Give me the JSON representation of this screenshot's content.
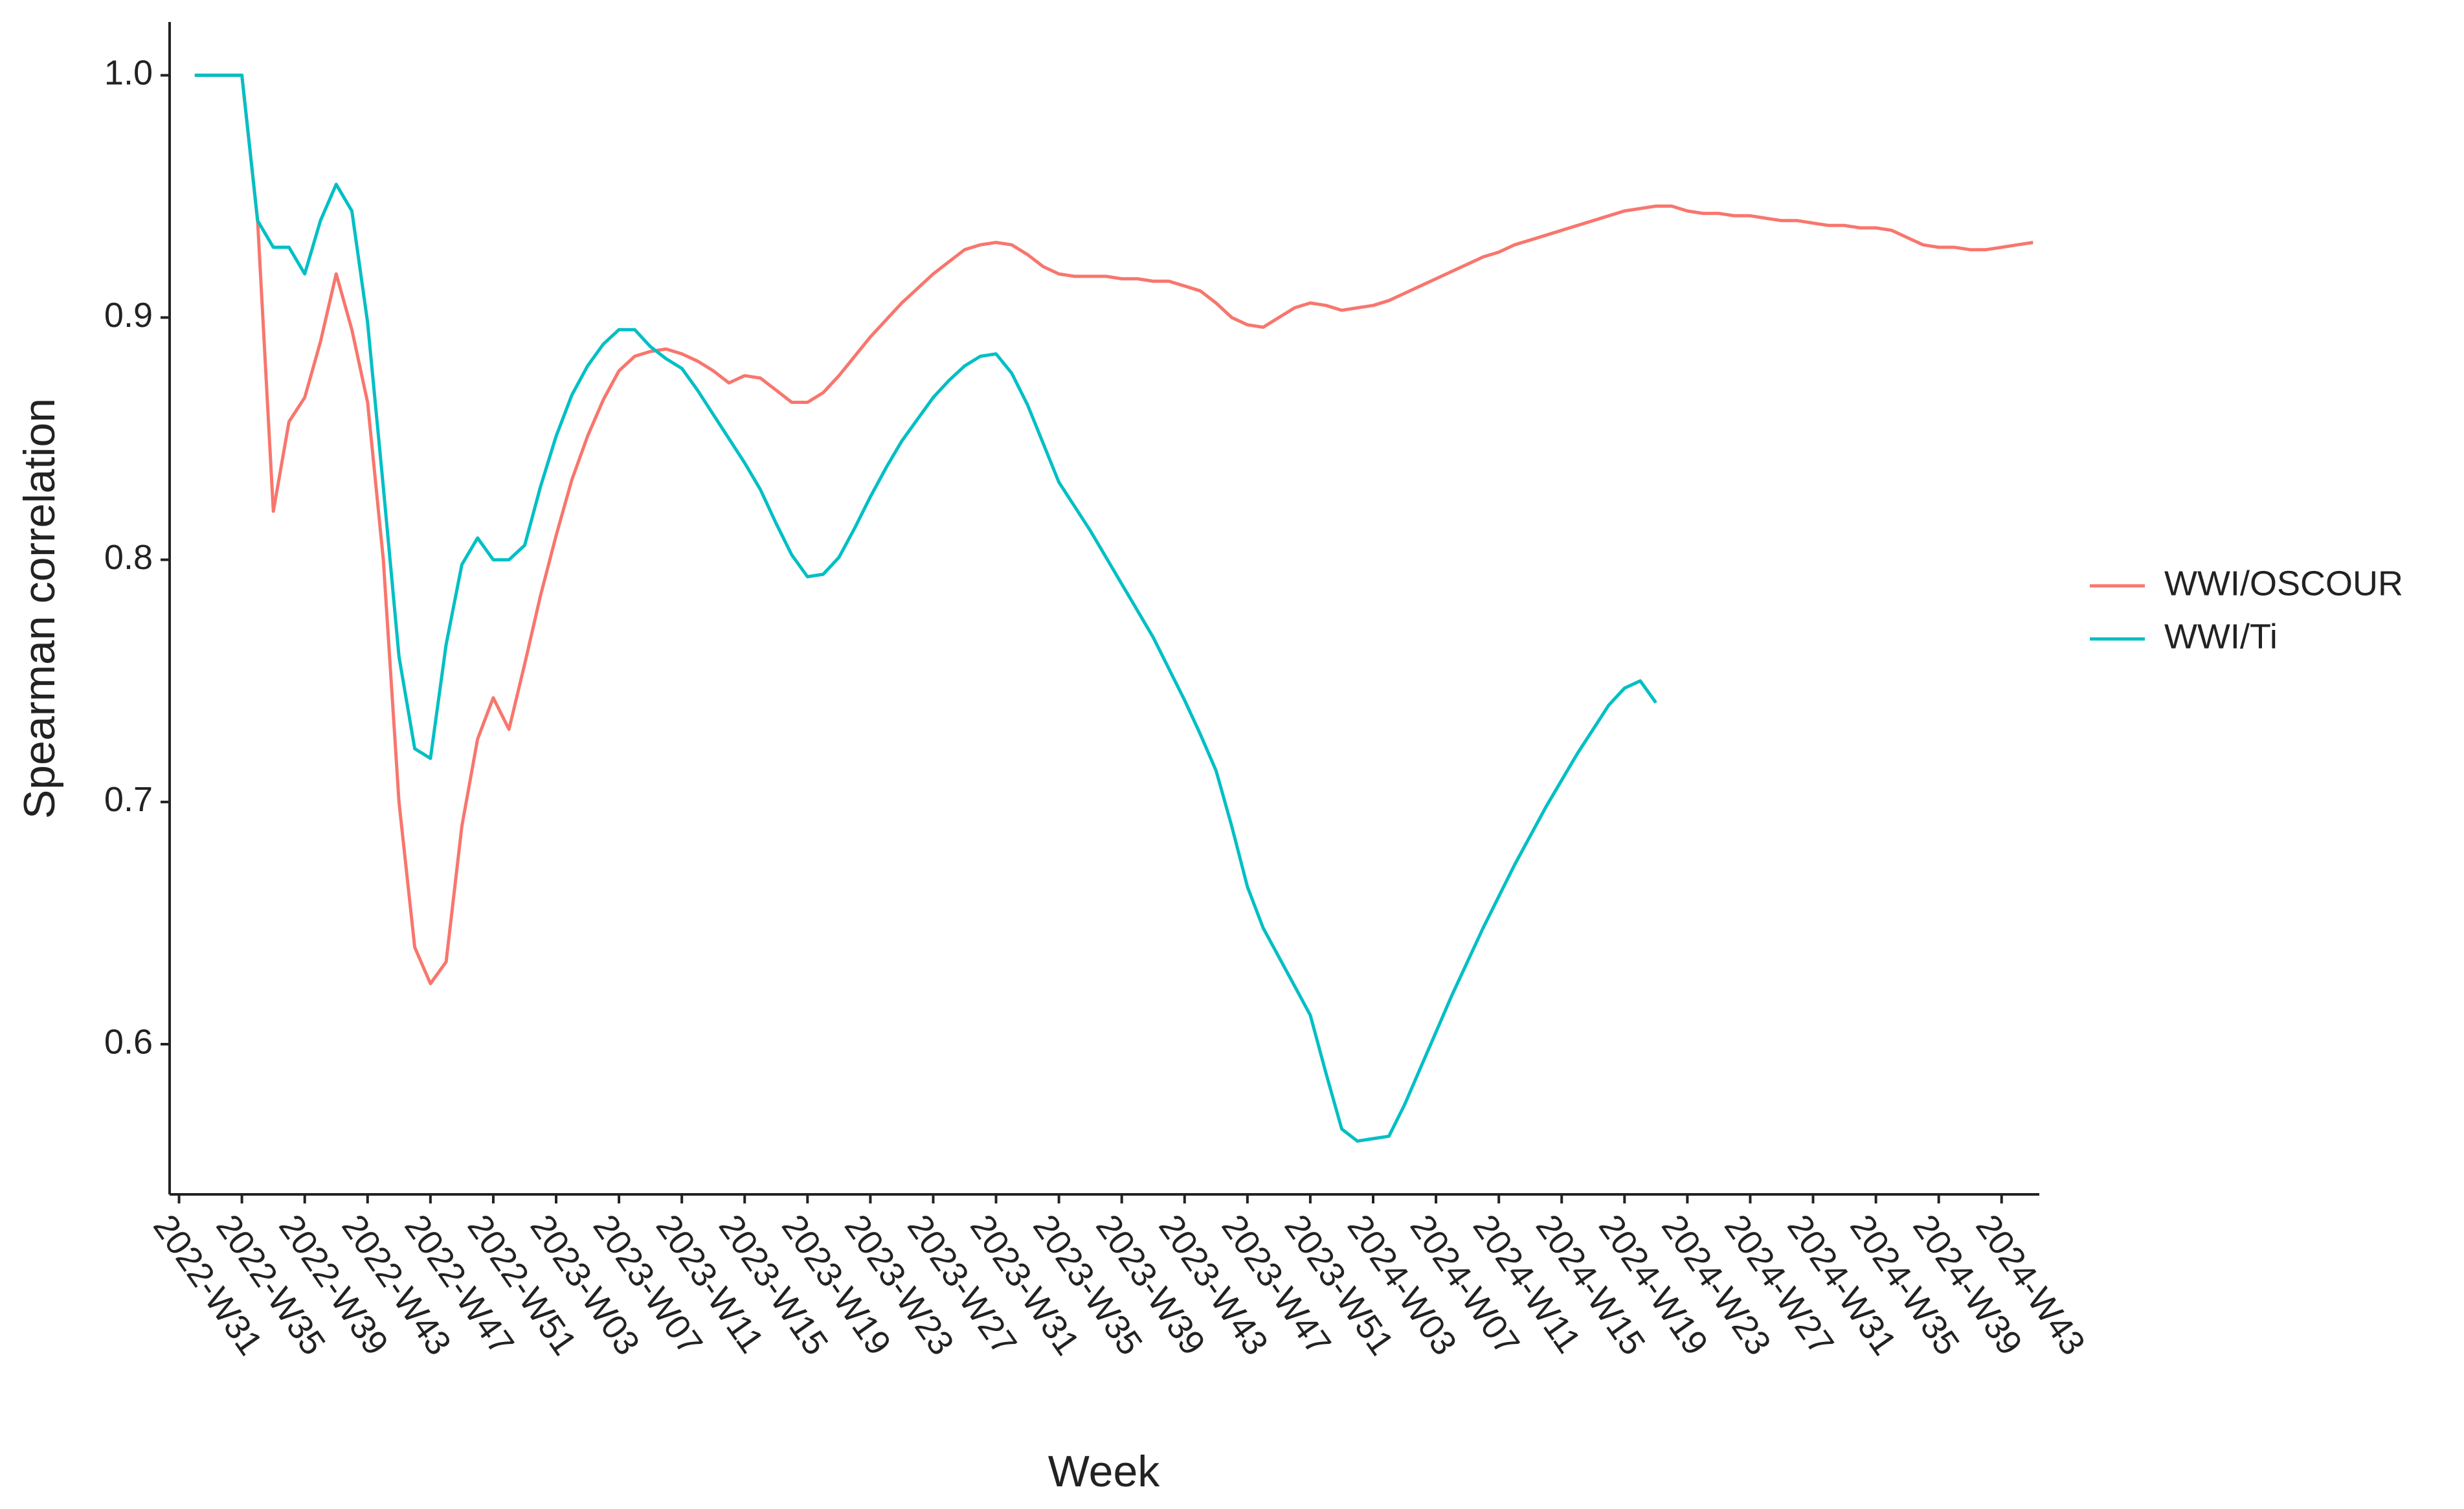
{
  "chart_data": {
    "type": "line",
    "xlabel": "Week",
    "ylabel": "Spearman correlation",
    "categories": [
      "2022-W31",
      null,
      null,
      null,
      "2022-W35",
      null,
      null,
      null,
      "2022-W39",
      null,
      null,
      null,
      "2022-W43",
      null,
      null,
      null,
      "2022-W47",
      null,
      null,
      null,
      "2022-W51",
      null,
      null,
      null,
      "2023-W03",
      null,
      null,
      null,
      "2023-W07",
      null,
      null,
      null,
      "2023-W11",
      null,
      null,
      null,
      "2023-W15",
      null,
      null,
      null,
      "2023-W19",
      null,
      null,
      null,
      "2023-W23",
      null,
      null,
      null,
      "2023-W27",
      null,
      null,
      null,
      "2023-W31",
      null,
      null,
      null,
      "2023-W35",
      null,
      null,
      null,
      "2023-W39",
      null,
      null,
      null,
      "2023-W43",
      null,
      null,
      null,
      "2023-W47",
      null,
      null,
      null,
      "2023-W51",
      null,
      null,
      null,
      "2024-W03",
      null,
      null,
      null,
      "2024-W07",
      null,
      null,
      null,
      "2024-W11",
      null,
      null,
      null,
      "2024-W15",
      null,
      null,
      null,
      "2024-W19",
      null,
      null,
      null,
      "2024-W23",
      null,
      null,
      null,
      "2024-W27",
      null,
      null,
      null,
      "2024-W31",
      null,
      null,
      null,
      "2024-W35",
      null,
      null,
      null,
      "2024-W39",
      null,
      null,
      null,
      "2024-W43",
      null,
      null
    ],
    "series": [
      {
        "name": "WWI/OSCOUR",
        "color": "#F8766D",
        "values": [
          null,
          1.0,
          1.0,
          1.0,
          1.0,
          0.94,
          0.82,
          0.857,
          0.867,
          0.89,
          0.918,
          0.895,
          0.865,
          0.8,
          0.7,
          0.64,
          0.625,
          0.634,
          0.69,
          0.726,
          0.743,
          0.73,
          0.757,
          0.785,
          0.81,
          0.833,
          0.851,
          0.866,
          0.878,
          0.884,
          0.886,
          0.887,
          0.885,
          0.882,
          0.878,
          0.873,
          0.876,
          0.875,
          0.87,
          0.865,
          0.865,
          0.869,
          0.876,
          0.884,
          0.892,
          0.899,
          0.906,
          0.912,
          0.918,
          0.923,
          0.928,
          0.93,
          0.931,
          0.93,
          0.926,
          0.921,
          0.918,
          0.917,
          0.917,
          0.917,
          0.916,
          0.916,
          0.915,
          0.915,
          0.913,
          0.911,
          0.906,
          0.9,
          0.897,
          0.896,
          0.9,
          0.904,
          0.906,
          0.905,
          0.903,
          0.904,
          0.905,
          0.907,
          0.91,
          0.913,
          0.916,
          0.919,
          0.922,
          0.925,
          0.927,
          0.93,
          0.932,
          0.934,
          0.936,
          0.938,
          0.94,
          0.942,
          0.944,
          0.945,
          0.946,
          0.946,
          0.944,
          0.943,
          0.943,
          0.942,
          0.942,
          0.941,
          0.94,
          0.94,
          0.939,
          0.938,
          0.938,
          0.937,
          0.937,
          0.936,
          0.933,
          0.93,
          0.929,
          0.929,
          0.928,
          0.928,
          0.929,
          0.93,
          0.931
        ]
      },
      {
        "name": "WWI/Ti",
        "color": "#00BFC4",
        "values": [
          null,
          1.0,
          1.0,
          1.0,
          1.0,
          0.94,
          0.929,
          0.929,
          0.918,
          0.94,
          0.955,
          0.944,
          0.898,
          0.83,
          0.76,
          0.722,
          0.718,
          0.765,
          0.798,
          0.809,
          0.8,
          0.8,
          0.806,
          0.83,
          0.851,
          0.868,
          0.88,
          0.889,
          0.895,
          0.895,
          0.888,
          0.883,
          0.879,
          0.87,
          0.86,
          0.85,
          0.84,
          0.829,
          0.815,
          0.802,
          0.793,
          0.794,
          0.801,
          0.813,
          0.826,
          0.838,
          0.849,
          0.858,
          0.867,
          0.874,
          0.88,
          0.884,
          0.885,
          0.877,
          0.864,
          0.848,
          0.832,
          0.822,
          0.812,
          0.801,
          0.79,
          0.779,
          0.768,
          0.755,
          0.742,
          0.728,
          0.713,
          0.69,
          0.665,
          0.648,
          0.636,
          0.624,
          0.612,
          0.588,
          0.565,
          0.56,
          0.561,
          0.562,
          0.575,
          0.59,
          0.605,
          0.62,
          0.634,
          0.648,
          0.661,
          0.674,
          0.686,
          0.698,
          0.709,
          0.72,
          0.73,
          0.74,
          0.747,
          0.75,
          0.741,
          null,
          null,
          null,
          null,
          null,
          null,
          null,
          null,
          null,
          null,
          null,
          null,
          null,
          null,
          null,
          null,
          null,
          null,
          null,
          null,
          null,
          null,
          null,
          null
        ]
      }
    ],
    "ylim": [
      0.538,
      1.022
    ],
    "yticks": [
      0.6,
      0.7,
      0.8,
      0.9,
      {
        "value": 1,
        "label": "1.0"
      }
    ],
    "grid": false,
    "legend": "right"
  }
}
